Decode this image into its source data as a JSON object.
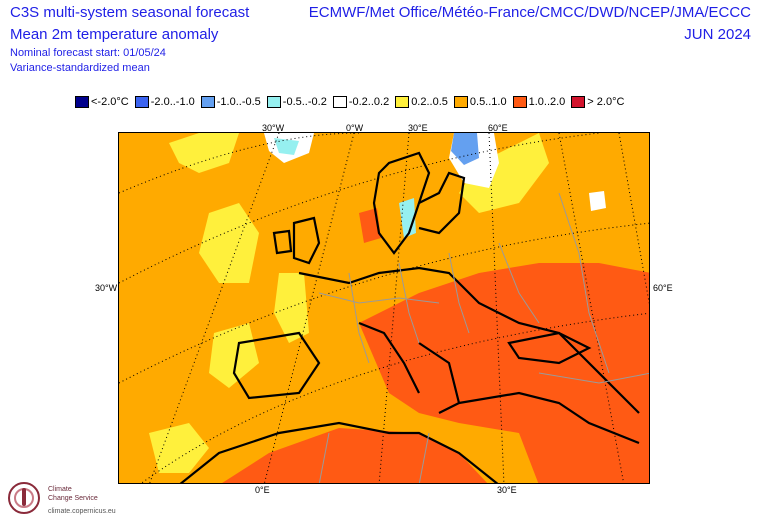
{
  "header": {
    "title_line1": "C3S multi-system seasonal forecast",
    "title_line2": "Mean 2m temperature anomaly",
    "forecast_start": "Nominal forecast start: 01/05/24",
    "mean_type": "Variance-standardized mean",
    "models": "ECMWF/Met Office/Météo-France/CMCC/DWD/NCEP/JMA/ECCC",
    "period": "JUN 2024"
  },
  "legend": [
    {
      "label": "<-2.0°C",
      "color": "#00008c"
    },
    {
      "label": "-2.0..-1.0",
      "color": "#3c64f0"
    },
    {
      "label": "-1.0..-0.5",
      "color": "#64a0f0"
    },
    {
      "label": "-0.5..-0.2",
      "color": "#96f0f0"
    },
    {
      "label": "-0.2..0.2",
      "color": "#ffffff"
    },
    {
      "label": "0.2..0.5",
      "color": "#fff03c"
    },
    {
      "label": "0.5..1.0",
      "color": "#ffaa00"
    },
    {
      "label": "1.0..2.0",
      "color": "#ff5a14"
    },
    {
      "label": "> 2.0°C",
      "color": "#d2142d"
    }
  ],
  "grid_labels": {
    "top": [
      "30°W",
      "0°W",
      "30°E",
      "60°E"
    ],
    "left": "30°W",
    "right": "60°E",
    "bottom": [
      "0°E",
      "30°E"
    ]
  },
  "logo": {
    "line1": "Climate",
    "line2": "Change Service",
    "url": "climate.copernicus.eu"
  },
  "colors": {
    "text": "#1f1fe6",
    "ocean_base": "#ffaa00",
    "warm": "#ff5a14",
    "mild": "#fff03c",
    "coast": "#000000",
    "border": "#9a9a9a",
    "grid": "#000000"
  }
}
